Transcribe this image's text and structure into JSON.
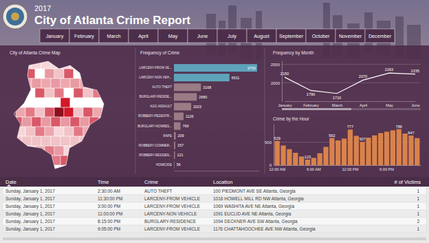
{
  "header": {
    "year": "2017",
    "title": "City of Atlanta Crime Report"
  },
  "months": [
    "January",
    "February",
    "March",
    "April",
    "May",
    "June",
    "July",
    "August",
    "September",
    "October",
    "November",
    "December"
  ],
  "map": {
    "title": "City of Atlanta Crime Map"
  },
  "chart_data": [
    {
      "type": "bar",
      "title": "Frequency of Crime",
      "orientation": "horizontal",
      "categories": [
        "LARCENY-FROM VE...",
        "LARCENY-NON VEH...",
        "AUTO THEFT",
        "BURGLARY-RESIDE...",
        "AGG ASSAULT",
        "ROBBERY-PEDESTR...",
        "BURGLARY-NONRES...",
        "RAPE",
        "ROBBERY-COMMER...",
        "ROBBERY-RESIDEN...",
        "HOMICIDE"
      ],
      "values": [
        9750,
        6511,
        3168,
        2680,
        2023,
        1126,
        769,
        209,
        157,
        121,
        56
      ],
      "colors": [
        "#5fa3bb",
        "#5fa3bb",
        "#9a7b86",
        "#9a7b86",
        "#9a7b86",
        "#9a7b86",
        "#9a7b86",
        "#9a7b86",
        "#9a7b86",
        "#9a7b86",
        "#9a7b86"
      ],
      "xlim": [
        0,
        10000
      ],
      "data_labels": true,
      "tick_labels": "y"
    },
    {
      "type": "line",
      "title": "Frequency by Month",
      "categories": [
        "January",
        "February",
        "March",
        "April",
        "May",
        "June"
      ],
      "values": [
        2150,
        1790,
        1710,
        2070,
        2263,
        2235
      ],
      "color": "#ffffff",
      "ylim": [
        1500,
        2600
      ],
      "yticks": [
        2000,
        2500
      ],
      "grid": true,
      "data_labels": true
    },
    {
      "type": "bar",
      "title": "Crime by the Hour",
      "categories": [
        "12:00 AM",
        null,
        null,
        null,
        null,
        null,
        "6:00 AM",
        null,
        null,
        null,
        null,
        null,
        "12:00 PM",
        null,
        null,
        null,
        null,
        null,
        "6:00 PM",
        null,
        null,
        null,
        null,
        null
      ],
      "values": [
        529,
        430,
        350,
        270,
        190,
        123,
        160,
        260,
        400,
        592,
        540,
        580,
        777,
        640,
        507,
        600,
        650,
        700,
        730,
        760,
        786,
        690,
        647,
        590
      ],
      "value_labels": [
        "529",
        null,
        null,
        null,
        null,
        "123",
        null,
        null,
        null,
        "592",
        null,
        null,
        "777",
        null,
        "507",
        null,
        null,
        null,
        null,
        null,
        "786",
        null,
        "647",
        null
      ],
      "color": "#d9824b",
      "ylim": [
        0,
        900
      ],
      "yticks": [
        0,
        500
      ],
      "grid": true,
      "data_labels": true
    }
  ],
  "table": {
    "columns": [
      "Date",
      "Time",
      "Crime",
      "Location",
      "# of Victims"
    ],
    "rows": [
      [
        "Sunday, January 1, 2017",
        "2:30:00 AM",
        "AUTO THEFT",
        "100 PIEDMONT AVE SE Atlanta, Georgia",
        1
      ],
      [
        "Sunday, January 1, 2017",
        "11:30:00 PM",
        "LARCENY-FROM VEHICLE",
        "1016 HOWELL MILL RD NW Atlanta, Georgia",
        1
      ],
      [
        "Sunday, January 1, 2017",
        "3:00:00 PM",
        "LARCENY-FROM VEHICLE",
        "1069 WASHITA AVE NE Atlanta, Georgia",
        1
      ],
      [
        "Sunday, January 1, 2017",
        "11:00:00 PM",
        "LARCENY-NON VEHICLE",
        "1091 EUCLID AVE NE Atlanta, Georgia",
        1
      ],
      [
        "Sunday, January 1, 2017",
        "8:15:00 PM",
        "BURGLARY-RESIDENCE",
        "1094 DECKNER AVE SW Atlanta, Georgia",
        2
      ],
      [
        "Sunday, January 1, 2017",
        "9:05:00 PM",
        "LARCENY-FROM VEHICLE",
        "1176 CHATTAHOOCHEE AVE NW Atlanta, Georgia",
        1
      ]
    ]
  }
}
